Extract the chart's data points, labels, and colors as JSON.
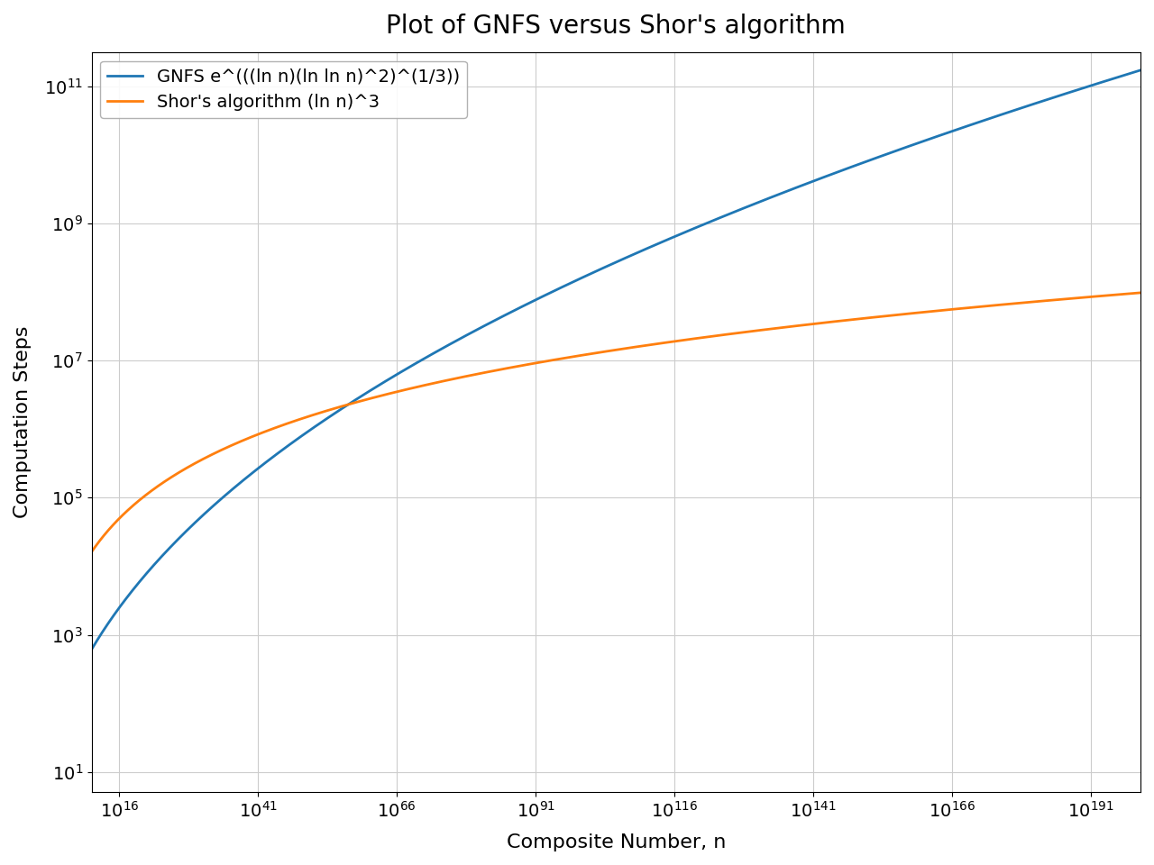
{
  "title": "Plot of GNFS versus Shor's algorithm",
  "xlabel": "Composite Number, n",
  "ylabel": "Computation Steps",
  "gnfs_label": "GNFS e^(((ln n)(ln ln n)^2)^(1/3))",
  "shor_label": "Shor's algorithm (ln n)^3",
  "gnfs_color": "#1f77b4",
  "shor_color": "#ff7f0e",
  "x_log10_min": 11,
  "x_log10_max": 200,
  "y_log10_min": 0.7,
  "y_log10_max": 11.5,
  "x_ticks_exp": [
    16,
    41,
    66,
    91,
    116,
    141,
    166,
    191
  ],
  "y_ticks_exp": [
    1,
    3,
    5,
    7,
    9,
    11
  ],
  "line_width": 2.0,
  "title_fontsize": 20,
  "label_fontsize": 16,
  "tick_fontsize": 14,
  "legend_fontsize": 14,
  "background_color": "#ffffff",
  "grid_color": "#cccccc"
}
